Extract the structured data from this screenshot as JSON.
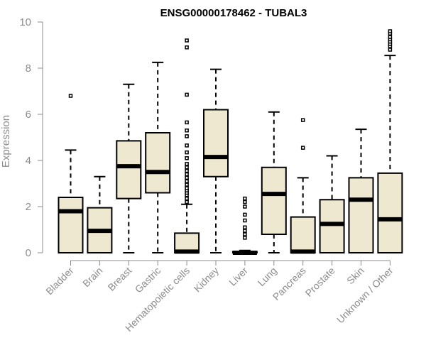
{
  "chart_data": {
    "type": "boxplot",
    "title": "ENSG00000178462 - TUBAL3",
    "xlabel": "",
    "ylabel": "Expression",
    "ylim": [
      0,
      10
    ],
    "yticks": [
      0,
      2,
      4,
      6,
      8,
      10
    ],
    "box_fill": "#efe8d0",
    "categories": [
      "Bladder",
      "Brain",
      "Breast",
      "Gastric",
      "Hematopoietic cells",
      "Kidney",
      "Liver",
      "Lung",
      "Pancreas",
      "Prostate",
      "Skin",
      "Unknown / Other"
    ],
    "series": [
      {
        "name": "Bladder",
        "whisker_low": 0.0,
        "q1": 0.0,
        "median": 1.8,
        "q3": 2.4,
        "whisker_high": 4.45,
        "outliers": [
          6.8
        ]
      },
      {
        "name": "Brain",
        "whisker_low": 0.0,
        "q1": 0.0,
        "median": 0.95,
        "q3": 1.95,
        "whisker_high": 3.3,
        "outliers": []
      },
      {
        "name": "Breast",
        "whisker_low": 0.0,
        "q1": 2.35,
        "median": 3.75,
        "q3": 4.85,
        "whisker_high": 7.3,
        "outliers": []
      },
      {
        "name": "Gastric",
        "whisker_low": 0.0,
        "q1": 2.6,
        "median": 3.5,
        "q3": 5.2,
        "whisker_high": 8.25,
        "outliers": []
      },
      {
        "name": "Hematopoietic cells",
        "whisker_low": 0.0,
        "q1": 0.0,
        "median": 0.05,
        "q3": 0.85,
        "whisker_high": 2.1,
        "outliers": [
          2.2,
          2.35,
          2.5,
          2.6,
          2.7,
          2.8,
          2.95,
          3.1,
          3.25,
          3.4,
          3.55,
          3.7,
          3.85,
          4.1,
          4.35,
          4.65,
          5.05,
          5.3,
          5.65,
          6.85,
          8.9,
          9.2
        ]
      },
      {
        "name": "Kidney",
        "whisker_low": 0.0,
        "q1": 3.3,
        "median": 4.15,
        "q3": 6.2,
        "whisker_high": 7.95,
        "outliers": []
      },
      {
        "name": "Liver",
        "whisker_low": 0.0,
        "q1": 0.0,
        "median": 0.0,
        "q3": 0.05,
        "whisker_high": 0.1,
        "outliers": [
          0.65,
          0.8,
          0.95,
          1.1,
          1.4,
          1.65,
          2.0,
          2.2,
          2.35
        ]
      },
      {
        "name": "Lung",
        "whisker_low": 0.0,
        "q1": 0.8,
        "median": 2.55,
        "q3": 3.7,
        "whisker_high": 6.1,
        "outliers": []
      },
      {
        "name": "Pancreas",
        "whisker_low": 0.0,
        "q1": 0.0,
        "median": 0.05,
        "q3": 1.55,
        "whisker_high": 3.25,
        "outliers": [
          4.55,
          5.75
        ]
      },
      {
        "name": "Prostate",
        "whisker_low": 0.0,
        "q1": 0.0,
        "median": 1.25,
        "q3": 2.3,
        "whisker_high": 4.2,
        "outliers": []
      },
      {
        "name": "Skin",
        "whisker_low": 0.0,
        "q1": 0.0,
        "median": 2.3,
        "q3": 3.25,
        "whisker_high": 5.35,
        "outliers": []
      },
      {
        "name": "Unknown / Other",
        "whisker_low": 0.0,
        "q1": 0.0,
        "median": 1.45,
        "q3": 3.45,
        "whisker_high": 8.55,
        "outliers": [
          8.8,
          8.95,
          9.05,
          9.15,
          9.25,
          9.35,
          9.5,
          9.6
        ]
      }
    ]
  }
}
